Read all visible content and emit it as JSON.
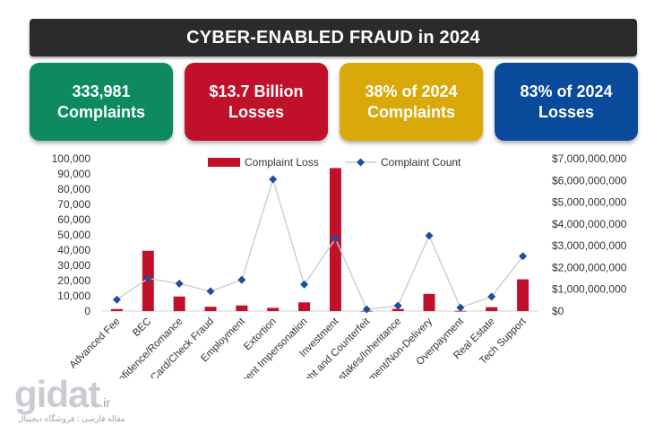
{
  "header": {
    "title": "CYBER-ENABLED FRAUD in 2024"
  },
  "cards": [
    {
      "line1": "333,981",
      "line2": "Complaints",
      "color": "#0e8a5f"
    },
    {
      "line1": "$13.7 Billion",
      "line2": "Losses",
      "color": "#c0102a"
    },
    {
      "line1": "38% of  2024",
      "line2": "Complaints",
      "color": "#d9a90a"
    },
    {
      "line1": "83% of 2024",
      "line2": "Losses",
      "color": "#0a4a9a"
    }
  ],
  "chart_data": {
    "type": "bar+line",
    "categories": [
      "Advanced Fee",
      "BEC",
      "Confidence/Romance",
      "Credit Card/Check Fraud",
      "Employment",
      "Extortion",
      "Government Impersonation",
      "Investment",
      "IPR/Copyright and Counterfeit",
      "Lottery/Sweepstakes/Inheritance",
      "Non-payment/Non-Delivery",
      "Overpayment",
      "Real Estate",
      "Tech Support"
    ],
    "series": [
      {
        "name": "Complaint Loss",
        "type": "bar",
        "axis": "right",
        "color": "#c0102a",
        "values": [
          95000000,
          2770000000,
          670000000,
          200000000,
          260000000,
          150000000,
          400000000,
          6570000000,
          9000000,
          100000000,
          790000000,
          10000000,
          180000000,
          1460000000
        ]
      },
      {
        "name": "Complaint Count",
        "type": "line",
        "axis": "left",
        "color": "#1f4e9c",
        "values": [
          7500,
          21500,
          18000,
          13000,
          20500,
          86500,
          17500,
          47500,
          1200,
          3500,
          49500,
          2300,
          9500,
          36000
        ]
      }
    ],
    "y_left": {
      "ticks": [
        "0",
        "10,000",
        "20,000",
        "30,000",
        "40,000",
        "50,000",
        "60,000",
        "70,000",
        "80,000",
        "90,000",
        "100,000"
      ],
      "min": 0,
      "max": 100000
    },
    "y_right": {
      "ticks": [
        "$0",
        "$1,000,000,000",
        "$2,000,000,000",
        "$3,000,000,000",
        "$4,000,000,000",
        "$5,000,000,000",
        "$6,000,000,000",
        "$7,000,000,000"
      ],
      "min": 0,
      "max": 7000000000
    },
    "legend": {
      "placement": "top-center",
      "items": [
        "Complaint Loss",
        "Complaint Count"
      ]
    },
    "grid": false
  },
  "watermark": {
    "logo": "gidat",
    "tld": ".ir",
    "subtitle": "مقاله فارسی ؛ فروشگاه دیجیتال"
  }
}
